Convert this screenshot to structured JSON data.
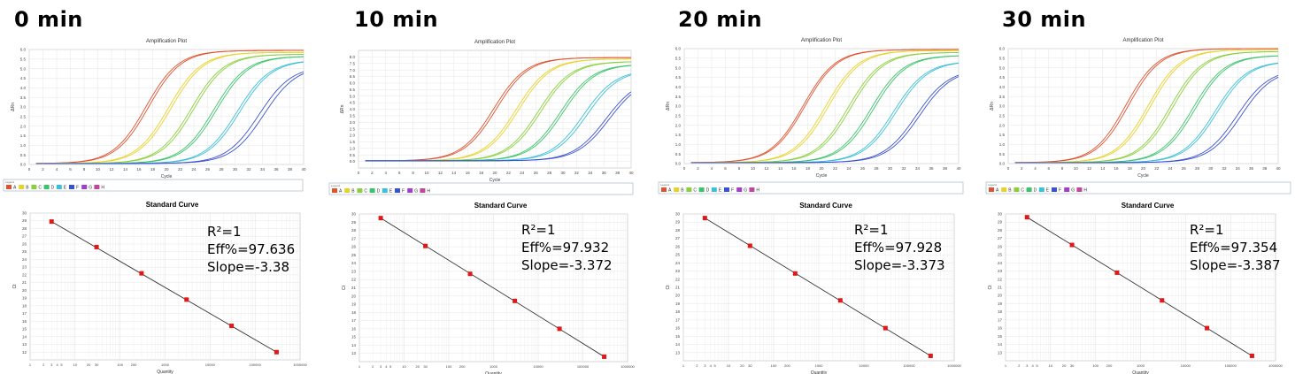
{
  "colors": {
    "A": "#e0522e",
    "B": "#e8d22a",
    "C": "#8ad03c",
    "D": "#3cc46a",
    "E": "#3cc0d8",
    "F": "#3a52d0",
    "G": "#a040c8",
    "H": "#c04898",
    "std_point": "#e01818",
    "fit_line": "#333333"
  },
  "panels": [
    {
      "time": "0 min",
      "stats": {
        "r2": "R²=1",
        "eff": "Eff%=97.636",
        "slope": "Slope=-3.38"
      }
    },
    {
      "time": "10 min",
      "stats": {
        "r2": "R²=1",
        "eff": "Eff%=97.932",
        "slope": "Slope=-3.372"
      }
    },
    {
      "time": "20 min",
      "stats": {
        "r2": "R²=1",
        "eff": "Eff%=97.928",
        "slope": "Slope=-3.373"
      }
    },
    {
      "time": "30 min",
      "stats": {
        "r2": "R²=1",
        "eff": "Eff%=97.354",
        "slope": "Slope=-3.387"
      }
    }
  ],
  "chart_data": [
    {
      "panel": "0 min",
      "type": "line",
      "title": "Amplification Plot",
      "xlabel": "Cycle",
      "ylabel": "ΔRn",
      "xlim": [
        0,
        40
      ],
      "ylim": [
        0,
        6.0
      ],
      "x_ticks": [
        0,
        2,
        4,
        6,
        8,
        10,
        12,
        14,
        16,
        18,
        20,
        22,
        24,
        26,
        28,
        30,
        32,
        34,
        36,
        38,
        40
      ],
      "y_ticks": [
        "0.0",
        "0.5",
        "1.0",
        "1.5",
        "2.0",
        "2.5",
        "3.0",
        "3.5",
        "4.0",
        "4.5",
        "5.0",
        "5.5",
        "6.0"
      ],
      "legend_title": "Legend",
      "legend": [
        "A",
        "B",
        "C",
        "D",
        "E",
        "F",
        "G",
        "H"
      ],
      "series": [
        {
          "name": "A",
          "midpoints": [
            17.0,
            17.4
          ],
          "plateau": 5.9
        },
        {
          "name": "B",
          "midpoints": [
            20.3,
            20.7
          ],
          "plateau": 5.8
        },
        {
          "name": "C",
          "midpoints": [
            23.6,
            24.0
          ],
          "plateau": 5.7
        },
        {
          "name": "D",
          "midpoints": [
            26.9,
            27.3
          ],
          "plateau": 5.6
        },
        {
          "name": "E",
          "midpoints": [
            30.3,
            30.7
          ],
          "plateau": 5.4
        },
        {
          "name": "F",
          "midpoints": [
            33.5,
            34.2
          ],
          "plateau": 5.1
        }
      ]
    },
    {
      "panel": "0 min",
      "type": "scatter",
      "title": "Standard Curve",
      "xlabel": "Quantity",
      "ylabel": "Ct",
      "x_scale": "log",
      "xlim": [
        1,
        1000000
      ],
      "ylim": [
        11,
        30
      ],
      "x_ticks": [
        "1",
        "2",
        "3",
        "4",
        "5",
        "10",
        "20",
        "30",
        "100",
        "200",
        "1000",
        "10000",
        "100000",
        "1000000"
      ],
      "y_ticks": [
        "12",
        "13",
        "14",
        "15",
        "16",
        "17",
        "18",
        "19",
        "20",
        "21",
        "22",
        "23",
        "24",
        "25",
        "26",
        "27",
        "28",
        "29",
        "30"
      ],
      "x": [
        3,
        30,
        300,
        3000,
        30000,
        300000
      ],
      "y": [
        28.9,
        25.6,
        22.2,
        18.8,
        15.4,
        12.0
      ]
    },
    {
      "panel": "10 min",
      "type": "line",
      "title": "Amplification Plot",
      "xlabel": "Cycle",
      "ylabel": "ΔRn",
      "xlim": [
        0,
        40
      ],
      "ylim": [
        -0.5,
        8.5
      ],
      "x_ticks": [
        0,
        2,
        4,
        6,
        8,
        10,
        12,
        14,
        16,
        18,
        20,
        22,
        24,
        26,
        28,
        30,
        32,
        34,
        36,
        38,
        40
      ],
      "y_ticks": [
        "0.0",
        "0.5",
        "1.0",
        "1.5",
        "2.0",
        "2.5",
        "3.0",
        "3.5",
        "4.0",
        "4.5",
        "5.0",
        "5.5",
        "6.0",
        "6.5",
        "7.0",
        "7.5",
        "8.0"
      ],
      "legend_title": "Legend",
      "legend": [
        "A",
        "B",
        "C",
        "D",
        "E",
        "F",
        "G",
        "H"
      ],
      "series": [
        {
          "name": "A",
          "midpoints": [
            19.8,
            20.2
          ],
          "plateau": 7.9
        },
        {
          "name": "B",
          "midpoints": [
            23.1,
            23.5
          ],
          "plateau": 7.8
        },
        {
          "name": "C",
          "midpoints": [
            26.4,
            26.8
          ],
          "plateau": 7.6
        },
        {
          "name": "D",
          "midpoints": [
            29.6,
            30.0
          ],
          "plateau": 7.4
        },
        {
          "name": "E",
          "midpoints": [
            33.0,
            33.5
          ],
          "plateau": 7.0
        },
        {
          "name": "F",
          "midpoints": [
            36.3,
            36.8
          ],
          "plateau": 6.4
        }
      ]
    },
    {
      "panel": "10 min",
      "type": "scatter",
      "title": "Standard Curve",
      "xlabel": "Quantity",
      "ylabel": "Ct",
      "x_scale": "log",
      "xlim": [
        1,
        1000000
      ],
      "ylim": [
        12,
        30
      ],
      "x_ticks": [
        "1",
        "2",
        "3",
        "4",
        "5",
        "10",
        "20",
        "30",
        "100",
        "200",
        "1000",
        "10000",
        "100000",
        "1000000"
      ],
      "y_ticks": [
        "13",
        "14",
        "15",
        "16",
        "17",
        "18",
        "19",
        "20",
        "21",
        "22",
        "23",
        "24",
        "25",
        "26",
        "27",
        "28",
        "29",
        "30"
      ],
      "x": [
        3,
        30,
        300,
        3000,
        30000,
        300000
      ],
      "y": [
        29.5,
        26.1,
        22.7,
        19.4,
        16.0,
        12.6
      ]
    },
    {
      "panel": "20 min",
      "type": "line",
      "title": "Amplification Plot",
      "xlabel": "Cycle",
      "ylabel": "ΔRn",
      "xlim": [
        0,
        40
      ],
      "ylim": [
        0,
        6.0
      ],
      "x_ticks": [
        0,
        2,
        4,
        6,
        8,
        10,
        12,
        14,
        16,
        18,
        20,
        22,
        24,
        26,
        28,
        30,
        32,
        34,
        36,
        38,
        40
      ],
      "y_ticks": [
        "0.0",
        "0.5",
        "1.0",
        "1.5",
        "2.0",
        "2.5",
        "3.0",
        "3.5",
        "4.0",
        "4.5",
        "5.0",
        "5.5",
        "6.0"
      ],
      "legend_title": "Legend",
      "legend": [
        "A",
        "B",
        "C",
        "D",
        "E",
        "F",
        "G",
        "H"
      ],
      "series": [
        {
          "name": "A",
          "midpoints": [
            17.3,
            17.6
          ],
          "plateau": 5.9
        },
        {
          "name": "B",
          "midpoints": [
            20.6,
            21.0
          ],
          "plateau": 5.85
        },
        {
          "name": "C",
          "midpoints": [
            23.9,
            24.3
          ],
          "plateau": 5.75
        },
        {
          "name": "D",
          "midpoints": [
            27.2,
            27.6
          ],
          "plateau": 5.6
        },
        {
          "name": "E",
          "midpoints": [
            30.5,
            30.9
          ],
          "plateau": 5.3
        },
        {
          "name": "F",
          "midpoints": [
            33.8,
            34.3
          ],
          "plateau": 4.9
        }
      ]
    },
    {
      "panel": "20 min",
      "type": "scatter",
      "title": "Standard Curve",
      "xlabel": "Quantity",
      "ylabel": "Ct",
      "x_scale": "log",
      "xlim": [
        1,
        1000000
      ],
      "ylim": [
        12,
        30
      ],
      "x_ticks": [
        "1",
        "2",
        "3",
        "4",
        "5",
        "10",
        "20",
        "30",
        "100",
        "200",
        "1000",
        "10000",
        "100000",
        "1000000"
      ],
      "y_ticks": [
        "13",
        "14",
        "15",
        "16",
        "17",
        "18",
        "19",
        "20",
        "21",
        "22",
        "23",
        "24",
        "25",
        "26",
        "27",
        "28",
        "29",
        "30"
      ],
      "x": [
        3,
        30,
        300,
        3000,
        30000,
        300000
      ],
      "y": [
        29.5,
        26.1,
        22.7,
        19.4,
        16.0,
        12.6
      ]
    },
    {
      "panel": "30 min",
      "type": "line",
      "title": "Amplification Plot",
      "xlabel": "Cycle",
      "ylabel": "ΔRn",
      "xlim": [
        0,
        40
      ],
      "ylim": [
        0,
        6.0
      ],
      "x_ticks": [
        0,
        2,
        4,
        6,
        8,
        10,
        12,
        14,
        16,
        18,
        20,
        22,
        24,
        26,
        28,
        30,
        32,
        34,
        36,
        38,
        40
      ],
      "y_ticks": [
        "0.0",
        "0.5",
        "1.0",
        "1.5",
        "2.0",
        "2.5",
        "3.0",
        "3.5",
        "4.0",
        "4.5",
        "5.0",
        "5.5",
        "6.0"
      ],
      "legend_title": "Legend",
      "legend": [
        "A",
        "B",
        "C",
        "D",
        "E",
        "F",
        "G",
        "H"
      ],
      "series": [
        {
          "name": "A",
          "midpoints": [
            17.4,
            17.8
          ],
          "plateau": 5.95
        },
        {
          "name": "B",
          "midpoints": [
            20.7,
            21.1
          ],
          "plateau": 5.9
        },
        {
          "name": "C",
          "midpoints": [
            24.0,
            24.4
          ],
          "plateau": 5.8
        },
        {
          "name": "D",
          "midpoints": [
            27.3,
            27.7
          ],
          "plateau": 5.6
        },
        {
          "name": "E",
          "midpoints": [
            30.6,
            31.0
          ],
          "plateau": 5.3
        },
        {
          "name": "F",
          "midpoints": [
            33.9,
            34.5
          ],
          "plateau": 4.9
        }
      ]
    },
    {
      "panel": "30 min",
      "type": "scatter",
      "title": "Standard Curve",
      "xlabel": "Quantity",
      "ylabel": "Ct",
      "x_scale": "log",
      "xlim": [
        1,
        1000000
      ],
      "ylim": [
        12,
        30
      ],
      "x_ticks": [
        "1",
        "2",
        "3",
        "4",
        "5",
        "10",
        "20",
        "30",
        "100",
        "200",
        "1000",
        "10000",
        "100000",
        "1000000"
      ],
      "y_ticks": [
        "13",
        "14",
        "15",
        "16",
        "17",
        "18",
        "19",
        "20",
        "21",
        "22",
        "23",
        "24",
        "25",
        "26",
        "27",
        "28",
        "29",
        "30"
      ],
      "x": [
        3,
        30,
        300,
        3000,
        30000,
        300000
      ],
      "y": [
        29.6,
        26.2,
        22.8,
        19.4,
        16.0,
        12.6
      ]
    }
  ]
}
